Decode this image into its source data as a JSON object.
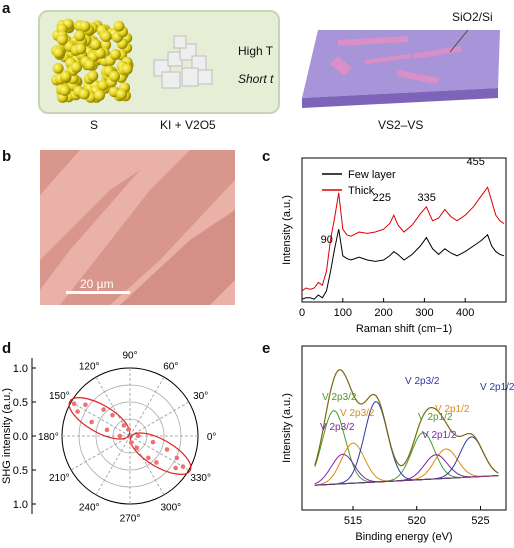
{
  "panels": {
    "a": {
      "letter": "a",
      "left_box_labels": [
        "S",
        "KI + V2O5"
      ],
      "conditions": [
        "High T",
        "Short t"
      ],
      "substrate_label": "SiO2/Si",
      "product_label": "VS2–VS"
    },
    "b": {
      "letter": "b",
      "scale_bar": "20 µm"
    },
    "c": {
      "letter": "c",
      "chart_data": {
        "type": "line",
        "xlabel": "Raman shift (cm−1)",
        "ylabel": "Intensity (a.u.)",
        "xlim": [
          0,
          500
        ],
        "xticks": [
          0,
          100,
          200,
          300,
          400
        ],
        "legend": {
          "placement": "top-left"
        },
        "series": [
          {
            "name": "Few layer",
            "color": "#000000",
            "x": [
              0,
              10,
              20,
              30,
              40,
              50,
              60,
              70,
              80,
              90,
              100,
              110,
              120,
              140,
              160,
              180,
              200,
              215,
              225,
              235,
              250,
              270,
              290,
              305,
              320,
              335,
              350,
              365,
              380,
              400,
              420,
              440,
              455,
              465,
              475,
              485,
              495
            ],
            "y": [
              0.02,
              0.03,
              0.03,
              0.02,
              0.05,
              0.03,
              0.08,
              0.22,
              0.38,
              0.52,
              0.33,
              0.31,
              0.3,
              0.32,
              0.3,
              0.29,
              0.3,
              0.33,
              0.36,
              0.34,
              0.3,
              0.34,
              0.4,
              0.46,
              0.38,
              0.34,
              0.38,
              0.35,
              0.33,
              0.36,
              0.4,
              0.44,
              0.48,
              0.4,
              0.36,
              0.34,
              0.33
            ]
          },
          {
            "name": "Thick",
            "color": "#e00000",
            "x": [
              0,
              10,
              20,
              30,
              40,
              50,
              60,
              70,
              80,
              90,
              100,
              110,
              120,
              140,
              160,
              180,
              200,
              215,
              225,
              235,
              250,
              270,
              290,
              305,
              320,
              335,
              350,
              365,
              380,
              400,
              420,
              440,
              455,
              465,
              475,
              485,
              495
            ],
            "y": [
              0.08,
              0.1,
              0.09,
              0.1,
              0.14,
              0.12,
              0.22,
              0.45,
              0.6,
              0.78,
              0.52,
              0.48,
              0.47,
              0.5,
              0.49,
              0.5,
              0.52,
              0.56,
              0.62,
              0.55,
              0.5,
              0.55,
              0.63,
              0.68,
              0.58,
              0.6,
              0.66,
              0.61,
              0.58,
              0.62,
              0.68,
              0.76,
              0.82,
              0.72,
              0.62,
              0.58,
              0.56
            ]
          }
        ],
        "annotations": [
          "90",
          "225",
          "335",
          "455"
        ]
      }
    },
    "d": {
      "letter": "d",
      "chart_data": {
        "type": "scatter",
        "polar": true,
        "ylabel": "SHG intensity (a.u.)",
        "radial_ticks": [
          "1.0",
          "0.5",
          "0.0",
          "0.5",
          "1.0"
        ],
        "angle_labels": [
          "90°",
          "60°",
          "30°",
          "0°",
          "330°",
          "300°",
          "270°",
          "240°",
          "210°",
          "180°",
          "150°",
          "120°"
        ],
        "angles_deg": [
          90,
          60,
          30,
          0,
          330,
          300,
          270,
          240,
          210,
          180,
          150,
          120
        ],
        "points": [
          {
            "theta": 150,
            "r": 0.95
          },
          {
            "theta": 145,
            "r": 0.8
          },
          {
            "theta": 155,
            "r": 0.85
          },
          {
            "theta": 135,
            "r": 0.55
          },
          {
            "theta": 130,
            "r": 0.4
          },
          {
            "theta": 160,
            "r": 0.6
          },
          {
            "theta": 165,
            "r": 0.35
          },
          {
            "theta": 120,
            "r": 0.18
          },
          {
            "theta": 100,
            "r": 0.1
          },
          {
            "theta": 330,
            "r": 0.9
          },
          {
            "theta": 325,
            "r": 0.82
          },
          {
            "theta": 335,
            "r": 0.76
          },
          {
            "theta": 315,
            "r": 0.55
          },
          {
            "theta": 310,
            "r": 0.42
          },
          {
            "theta": 340,
            "r": 0.58
          },
          {
            "theta": 345,
            "r": 0.35
          },
          {
            "theta": 300,
            "r": 0.2
          },
          {
            "theta": 280,
            "r": 0.1
          },
          {
            "theta": 0,
            "r": 0.12
          },
          {
            "theta": 180,
            "r": 0.15
          }
        ],
        "fit": {
          "orientation_deg": 150,
          "color": "#e02020"
        }
      }
    },
    "e": {
      "letter": "e",
      "chart_data": {
        "type": "line",
        "xlabel": "Binding energy (eV)",
        "ylabel": "Intensity (a.u.)",
        "xlim": [
          511,
          527
        ],
        "xticks": [
          515,
          520,
          525
        ],
        "peak_labels": [
          {
            "text": "V 2p3/2",
            "color": "#4a9a2a"
          },
          {
            "text": "V 2p3/2",
            "color": "#e08a10"
          },
          {
            "text": "V 2p3/2",
            "color": "#7a2aa0"
          },
          {
            "text": "V 2p3/2",
            "color": "#2a3aa0"
          },
          {
            "text": "V 2p1/2",
            "color": "#4a9a2a"
          },
          {
            "text": "V 2p1/2",
            "color": "#e08a10"
          },
          {
            "text": "V 2p1/2",
            "color": "#7a2aa0"
          },
          {
            "text": "V 2p1/2",
            "color": "#2a3aa0"
          }
        ],
        "envelope_color": "#7a6a10"
      }
    }
  }
}
